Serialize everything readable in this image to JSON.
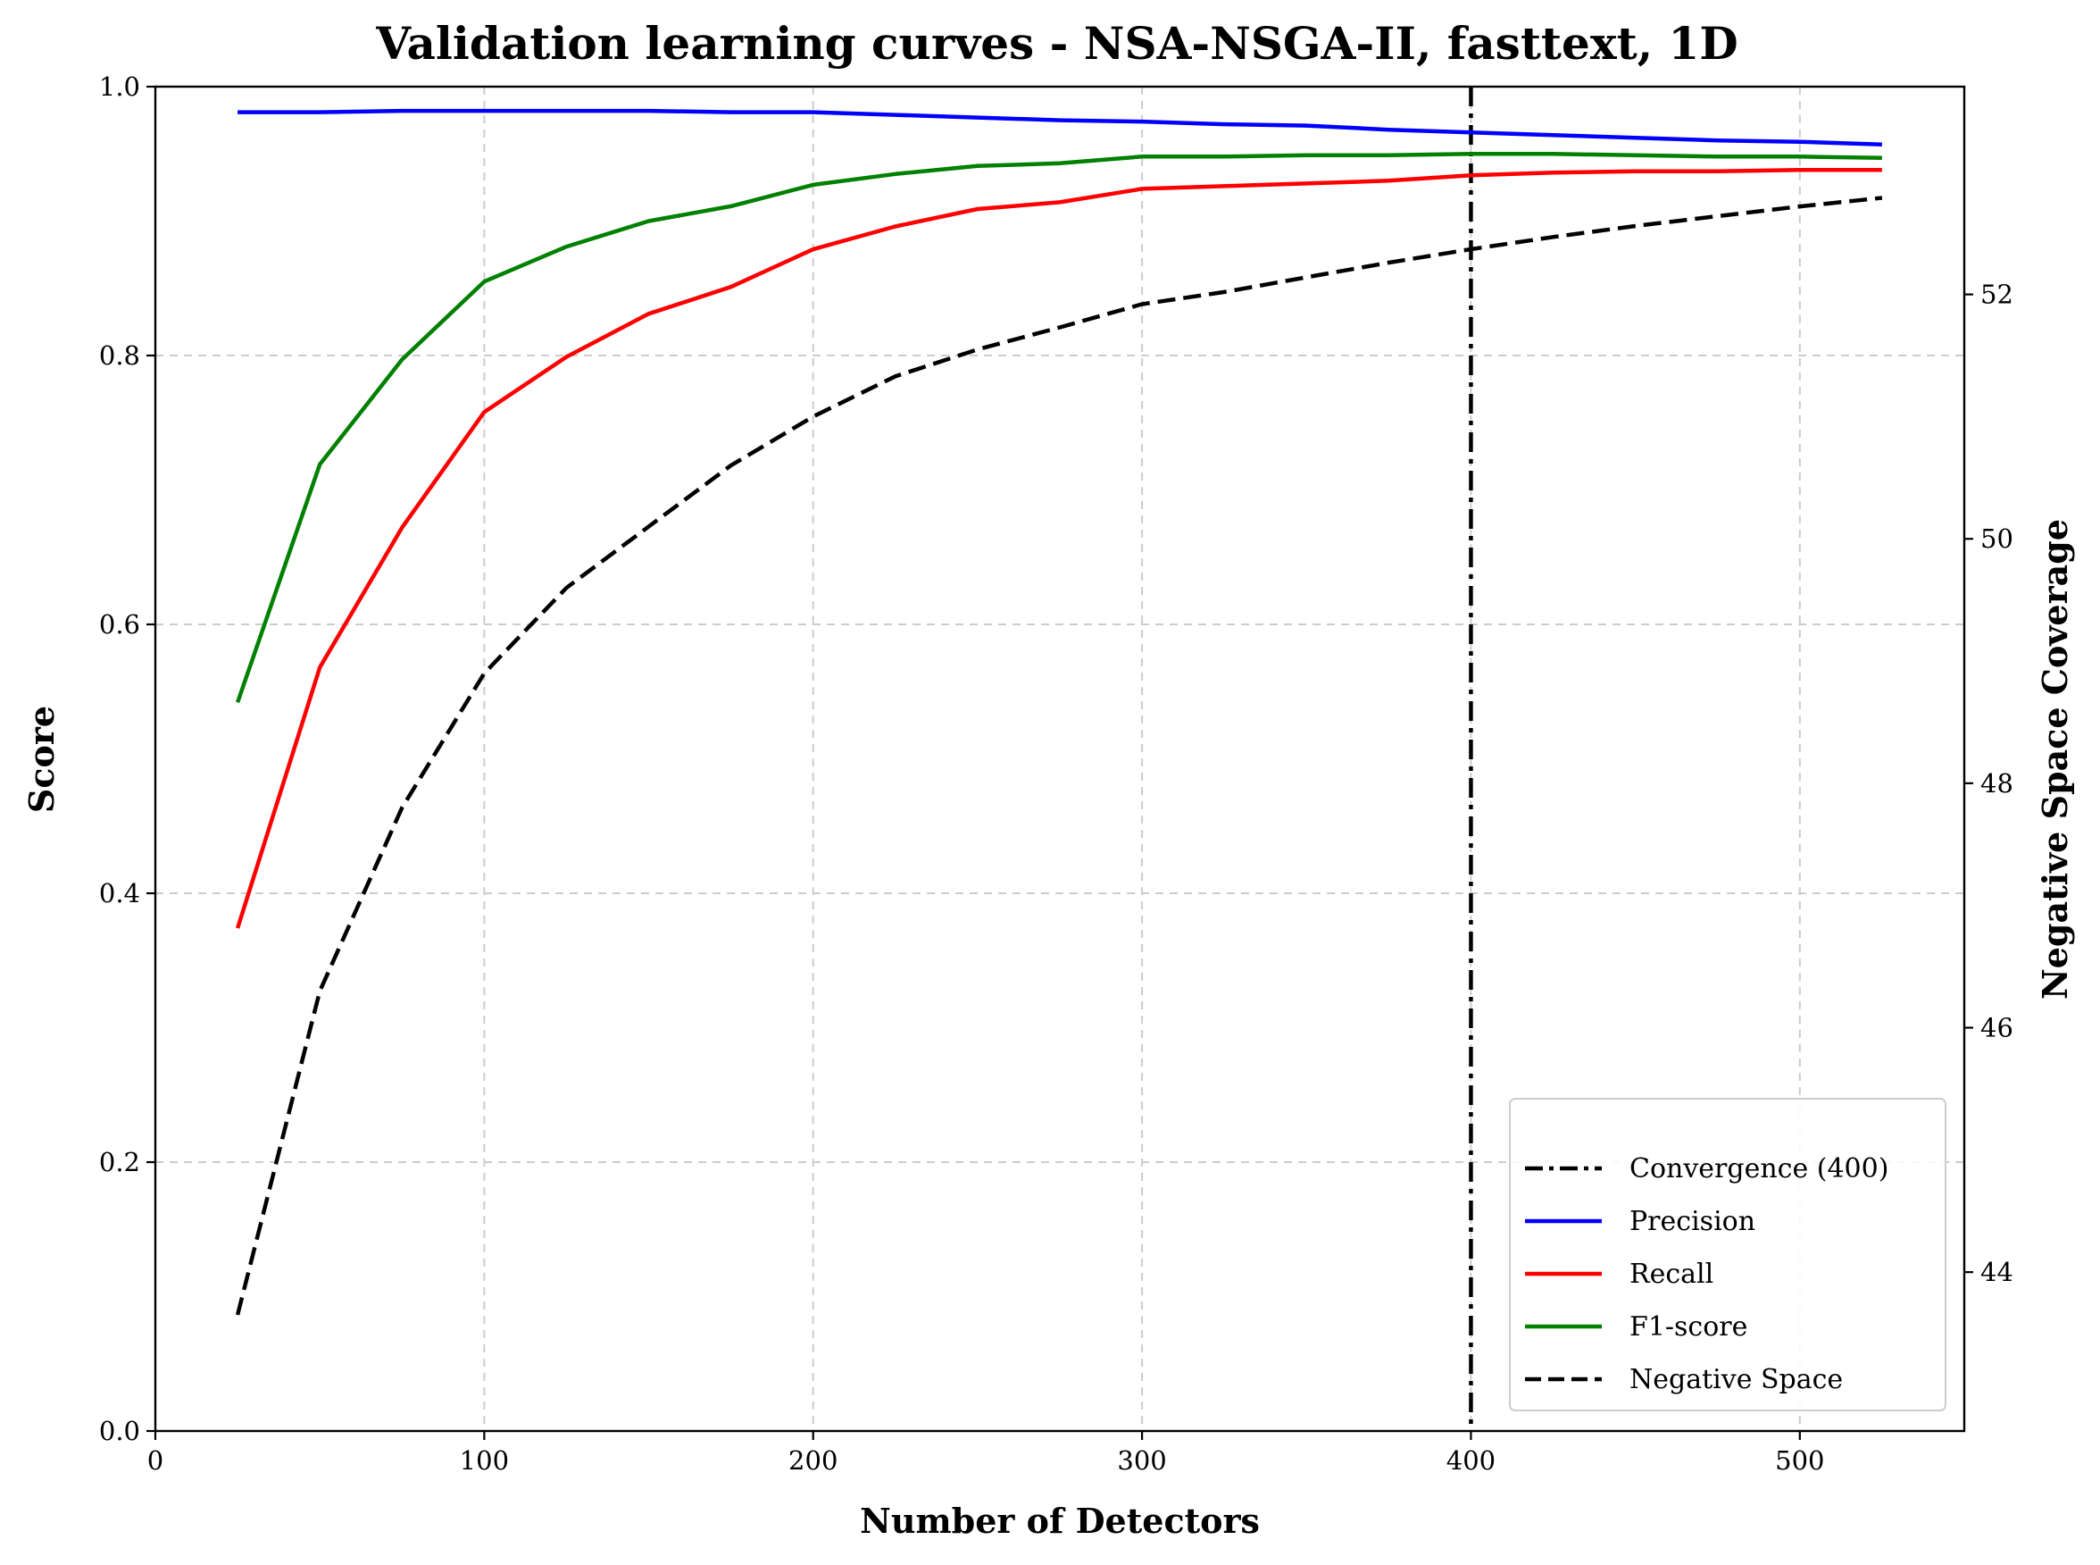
{
  "chart_data": {
    "type": "line",
    "title": "Validation learning curves - NSA-NSGA-II, fasttext, 1D",
    "xlabel": "Number of Detectors",
    "ylabel": "Score",
    "y2label": "Negative Space Coverage",
    "xlim": [
      0,
      550
    ],
    "ylim": [
      0.0,
      1.0
    ],
    "y2lim": [
      42.7,
      53.7
    ],
    "xticks": [
      "0",
      "100",
      "200",
      "300",
      "400",
      "500"
    ],
    "xtick_values": [
      0,
      100,
      200,
      300,
      400,
      500
    ],
    "yticks": [
      "0.0",
      "0.2",
      "0.4",
      "0.6",
      "0.8",
      "1.0"
    ],
    "ytick_values": [
      0.0,
      0.2,
      0.4,
      0.6,
      0.8,
      1.0
    ],
    "y2ticks": [
      "44",
      "46",
      "48",
      "50",
      "52"
    ],
    "y2tick_values": [
      44,
      46,
      48,
      50,
      52
    ],
    "grid": true,
    "legend_position": "lower-right",
    "x": [
      25,
      50,
      75,
      100,
      125,
      150,
      175,
      200,
      225,
      250,
      275,
      300,
      325,
      350,
      375,
      400,
      425,
      450,
      475,
      500,
      525
    ],
    "series": [
      {
        "name": "Precision",
        "axis": "left",
        "color": "#0000ff",
        "style": "solid",
        "values": [
          0.981,
          0.981,
          0.982,
          0.982,
          0.982,
          0.982,
          0.981,
          0.981,
          0.979,
          0.977,
          0.975,
          0.974,
          0.972,
          0.971,
          0.968,
          0.966,
          0.964,
          0.962,
          0.96,
          0.959,
          0.957
        ]
      },
      {
        "name": "Recall",
        "axis": "left",
        "color": "#ff0000",
        "style": "solid",
        "values": [
          0.374,
          0.568,
          0.672,
          0.758,
          0.799,
          0.831,
          0.851,
          0.879,
          0.896,
          0.909,
          0.914,
          0.924,
          0.926,
          0.928,
          0.93,
          0.934,
          0.936,
          0.937,
          0.937,
          0.938,
          0.938
        ]
      },
      {
        "name": "F1-score",
        "axis": "left",
        "color": "#008000",
        "style": "solid",
        "values": [
          0.542,
          0.719,
          0.797,
          0.855,
          0.881,
          0.9,
          0.911,
          0.927,
          0.935,
          0.941,
          0.943,
          0.948,
          0.948,
          0.949,
          0.949,
          0.95,
          0.95,
          0.949,
          0.948,
          0.948,
          0.947
        ]
      },
      {
        "name": "Negative Space",
        "axis": "right",
        "color": "#000000",
        "style": "dashed",
        "values": [
          43.65,
          46.3,
          47.8,
          48.9,
          49.6,
          50.1,
          50.6,
          51.0,
          51.33,
          51.55,
          51.73,
          51.92,
          52.02,
          52.14,
          52.26,
          52.37,
          52.47,
          52.56,
          52.64,
          52.72,
          52.79
        ]
      }
    ],
    "vlines": [
      {
        "name": "Convergence (400)",
        "x": 400,
        "color": "#000000",
        "style": "dashdot"
      }
    ],
    "legend": [
      "Convergence (400)",
      "Precision",
      "Recall",
      "F1-score",
      "Negative Space"
    ]
  }
}
